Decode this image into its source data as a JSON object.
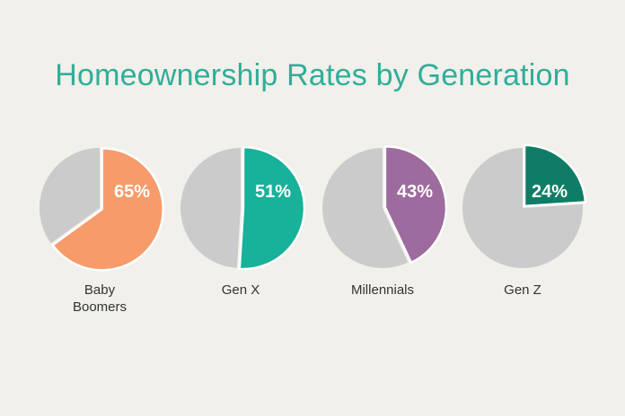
{
  "title": "Homeownership Rates by Generation",
  "chart_data": [
    {
      "type": "pie",
      "category": "Baby Boomers",
      "label_lines": [
        "Baby",
        "Boomers"
      ],
      "value": 65,
      "value_label": "65%",
      "color": "#f79b6a",
      "rest_color": "#cbcbcb"
    },
    {
      "type": "pie",
      "category": "Gen X",
      "label_lines": [
        "Gen X"
      ],
      "value": 51,
      "value_label": "51%",
      "color": "#18b19a",
      "rest_color": "#cbcbcb"
    },
    {
      "type": "pie",
      "category": "Millennials",
      "label_lines": [
        "Millennials"
      ],
      "value": 43,
      "value_label": "43%",
      "color": "#9d6b9e",
      "rest_color": "#cbcbcb"
    },
    {
      "type": "pie",
      "category": "Gen Z",
      "label_lines": [
        "Gen Z"
      ],
      "value": 24,
      "value_label": "24%",
      "color": "#0f7d66",
      "rest_color": "#cbcbcb"
    }
  ]
}
